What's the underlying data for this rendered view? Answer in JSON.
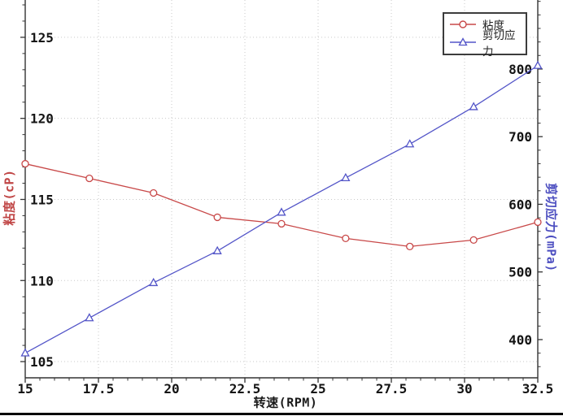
{
  "chart_data": {
    "type": "line",
    "title": "",
    "xlabel": "转速(RPM)",
    "x": [
      15,
      17.19,
      19.38,
      21.56,
      23.75,
      25.94,
      28.13,
      30.31,
      32.5
    ],
    "x_range": [
      15,
      32.5
    ],
    "x_ticks": [
      15,
      17.5,
      20,
      22.5,
      25,
      27.5,
      30,
      32.5
    ],
    "x_minor_step": 0.5,
    "grid": true,
    "grid_color": "#c9c9c9",
    "spine_color": "#333333",
    "tick_label_color": "#141414",
    "legend_position": "top-right",
    "left_axis": {
      "label": "粘度(cP)",
      "unit": "cP",
      "ticks": [
        105,
        110,
        115,
        120,
        125
      ],
      "range": [
        104.0,
        127.3
      ],
      "minor_step": 1,
      "color": "#c04545"
    },
    "right_axis": {
      "label": "剪切应力(mPa)",
      "unit": "mPa",
      "ticks": [
        400,
        500,
        600,
        700,
        800
      ],
      "range": [
        343.5,
        902
      ],
      "minor_step": 20,
      "color": "#4c4ec0"
    },
    "series": [
      {
        "name": "粘度",
        "axis": "left",
        "marker": "circle",
        "color": "#c84848",
        "values": [
          117.2,
          116.3,
          115.4,
          113.9,
          113.5,
          112.6,
          112.1,
          112.5,
          113.6
        ]
      },
      {
        "name": "剪切应力",
        "axis": "right",
        "marker": "triangle",
        "color": "#5355c8",
        "values": [
          380,
          432,
          484,
          531,
          588,
          639,
          689,
          744,
          805
        ]
      }
    ]
  }
}
